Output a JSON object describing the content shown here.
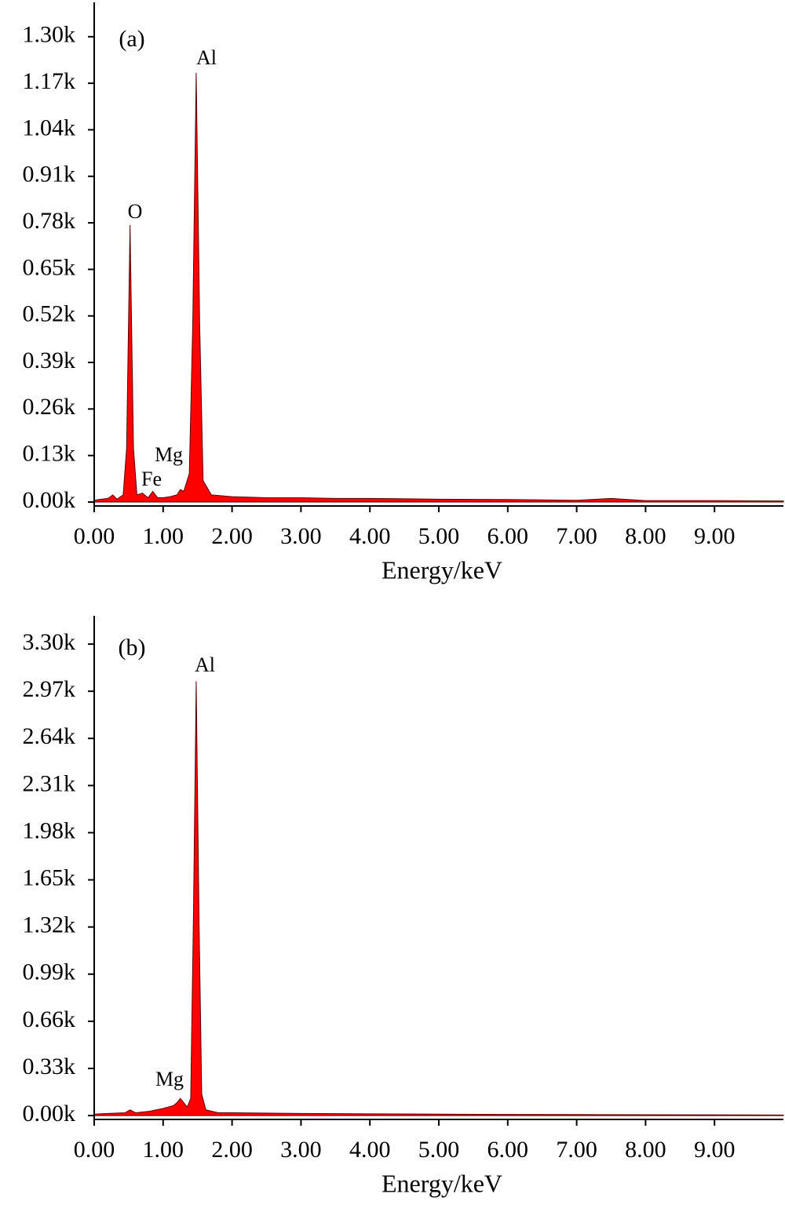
{
  "chart_data": [
    {
      "type": "area",
      "panel_label": "(a)",
      "x_label": "Energy/keV",
      "color": "#ff0000",
      "annotations": [
        "O",
        "Fe",
        "Mg",
        "Al"
      ],
      "x": [
        0,
        0.1,
        0.2,
        0.27,
        0.33,
        0.42,
        0.47,
        0.52,
        0.57,
        0.62,
        0.7,
        0.78,
        0.85,
        0.92,
        1.0,
        1.1,
        1.2,
        1.25,
        1.3,
        1.38,
        1.43,
        1.48,
        1.53,
        1.58,
        1.7,
        2.0,
        2.5,
        3.0,
        3.5,
        4.0,
        5.0,
        6.0,
        7.0,
        7.5,
        8.0,
        9.0,
        10.0
      ],
      "values": [
        0.005,
        0.008,
        0.01,
        0.02,
        0.008,
        0.02,
        0.15,
        0.774,
        0.15,
        0.02,
        0.025,
        0.012,
        0.03,
        0.012,
        0.012,
        0.015,
        0.02,
        0.035,
        0.03,
        0.08,
        0.5,
        1.199,
        0.5,
        0.06,
        0.02,
        0.015,
        0.012,
        0.012,
        0.01,
        0.01,
        0.008,
        0.007,
        0.005,
        0.01,
        0.004,
        0.004,
        0.003
      ],
      "xlim": [
        0,
        10
      ],
      "ylim": [
        -0.011,
        1.396
      ],
      "xticks": [
        {
          "value": 0,
          "label": "0.00"
        },
        {
          "value": 1,
          "label": "1.00"
        },
        {
          "value": 2,
          "label": "2.00"
        },
        {
          "value": 3,
          "label": "3.00"
        },
        {
          "value": 4,
          "label": "4.00"
        },
        {
          "value": 5,
          "label": "5.00"
        },
        {
          "value": 6,
          "label": "6.00"
        },
        {
          "value": 7,
          "label": "7.00"
        },
        {
          "value": 8,
          "label": "8.00"
        },
        {
          "value": 9,
          "label": "9.00"
        }
      ],
      "yticks": [
        {
          "value": 0,
          "label": "0.00k"
        },
        {
          "value": 0.13,
          "label": "0.13k"
        },
        {
          "value": 0.26,
          "label": "0.26k"
        },
        {
          "value": 0.39,
          "label": "0.39k"
        },
        {
          "value": 0.52,
          "label": "0.52k"
        },
        {
          "value": 0.65,
          "label": "0.65k"
        },
        {
          "value": 0.78,
          "label": "0.78k"
        },
        {
          "value": 0.91,
          "label": "0.91k"
        },
        {
          "value": 1.04,
          "label": "1.04k"
        },
        {
          "value": 1.17,
          "label": "1.17k"
        },
        {
          "value": 1.3,
          "label": "1.30k"
        }
      ]
    },
    {
      "type": "area",
      "panel_label": "(b)",
      "x_label": "Energy/keV",
      "color": "#ff0000",
      "annotations": [
        "Mg",
        "Al"
      ],
      "x": [
        0,
        0.2,
        0.45,
        0.52,
        0.6,
        0.8,
        1.0,
        1.15,
        1.2,
        1.25,
        1.3,
        1.35,
        1.4,
        1.44,
        1.48,
        1.52,
        1.56,
        1.62,
        1.8,
        2.0,
        3.0,
        4.0,
        5.0,
        6.0,
        7.0,
        8.0,
        9.0,
        10.0
      ],
      "values": [
        0.01,
        0.015,
        0.02,
        0.04,
        0.02,
        0.03,
        0.05,
        0.07,
        0.09,
        0.12,
        0.09,
        0.06,
        0.12,
        1.4,
        3.04,
        1.4,
        0.15,
        0.04,
        0.02,
        0.02,
        0.015,
        0.012,
        0.01,
        0.008,
        0.007,
        0.006,
        0.005,
        0.004
      ],
      "xlim": [
        0,
        10
      ],
      "ylim": [
        -0.027,
        3.498
      ],
      "xticks": [
        {
          "value": 0,
          "label": "0.00"
        },
        {
          "value": 1,
          "label": "1.00"
        },
        {
          "value": 2,
          "label": "2.00"
        },
        {
          "value": 3,
          "label": "3.00"
        },
        {
          "value": 4,
          "label": "4.00"
        },
        {
          "value": 5,
          "label": "5.00"
        },
        {
          "value": 6,
          "label": "6.00"
        },
        {
          "value": 7,
          "label": "7.00"
        },
        {
          "value": 8,
          "label": "8.00"
        },
        {
          "value": 9,
          "label": "9.00"
        }
      ],
      "yticks": [
        {
          "value": 0,
          "label": "0.00k"
        },
        {
          "value": 0.33,
          "label": "0.33k"
        },
        {
          "value": 0.66,
          "label": "0.66k"
        },
        {
          "value": 0.99,
          "label": "0.99k"
        },
        {
          "value": 1.32,
          "label": "1.32k"
        },
        {
          "value": 1.65,
          "label": "1.65k"
        },
        {
          "value": 1.98,
          "label": "1.98k"
        },
        {
          "value": 2.31,
          "label": "2.31k"
        },
        {
          "value": 2.64,
          "label": "2.64k"
        },
        {
          "value": 2.97,
          "label": "2.97k"
        },
        {
          "value": 3.3,
          "label": "3.30k"
        }
      ]
    }
  ]
}
